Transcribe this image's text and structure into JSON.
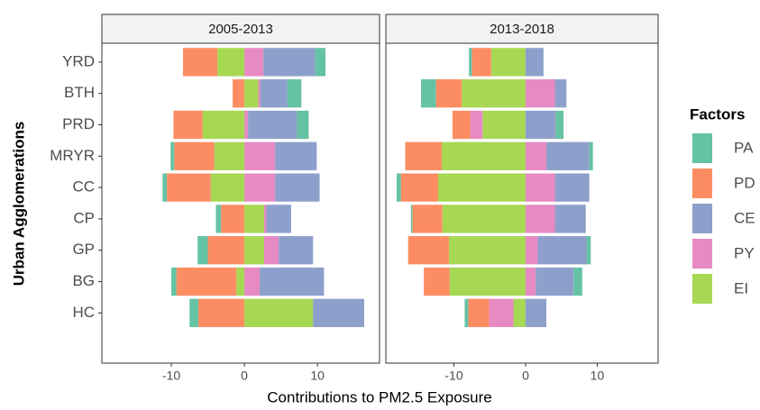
{
  "chart_data": [
    {
      "type": "bar",
      "orientation": "horizontal",
      "stacked": true,
      "title": "2005-2013",
      "x_label": "Contributions to PM2.5 Exposure",
      "y_label": "Urban Agglomerations",
      "legend_title": "Factors",
      "categories": [
        "YRD",
        "BTH",
        "PRD",
        "MRYR",
        "CC",
        "CP",
        "GP",
        "BG",
        "HC"
      ],
      "xlim": [
        -19.5,
        18.5
      ],
      "xticks": [
        -10,
        0,
        10
      ],
      "series": [
        {
          "name": "PA",
          "color": "#66c2a5",
          "values": [
            1.4,
            1.9,
            1.6,
            -0.5,
            -0.6,
            -0.7,
            -1.4,
            -0.7,
            -1.2
          ]
        },
        {
          "name": "PD",
          "color": "#fc8d62",
          "values": [
            -4.7,
            -1.6,
            -4.0,
            -5.5,
            -6.0,
            -3.2,
            -5.0,
            -8.2,
            -6.3
          ]
        },
        {
          "name": "CE",
          "color": "#8da0cb",
          "values": [
            7.1,
            3.7,
            6.7,
            5.7,
            6.1,
            3.4,
            4.7,
            8.8,
            7.0
          ]
        },
        {
          "name": "PY",
          "color": "#e78ac3",
          "values": [
            2.6,
            0.3,
            0.5,
            4.2,
            4.2,
            0.3,
            2.0,
            2.1,
            0
          ]
        },
        {
          "name": "EI",
          "color": "#a6d854",
          "values": [
            -3.7,
            1.9,
            -5.7,
            -4.1,
            -4.6,
            2.7,
            2.7,
            -1.1,
            9.4
          ]
        }
      ]
    },
    {
      "type": "bar",
      "orientation": "horizontal",
      "stacked": true,
      "title": "2013-2018",
      "xlim": [
        -19.5,
        18.5
      ],
      "xticks": [
        -10,
        0,
        10
      ],
      "series": [
        {
          "name": "PA",
          "color": "#66c2a5",
          "values": [
            -0.4,
            -2.1,
            1.1,
            0.5,
            -0.6,
            -0.2,
            0.6,
            1.2,
            -0.5
          ]
        },
        {
          "name": "PD",
          "color": "#fc8d62",
          "values": [
            -2.7,
            -3.6,
            -2.5,
            -5.1,
            -5.2,
            -4.2,
            -5.7,
            -3.6,
            -2.9
          ]
        },
        {
          "name": "CE",
          "color": "#8da0cb",
          "values": [
            2.5,
            1.6,
            4.2,
            6.0,
            4.8,
            4.3,
            6.8,
            5.3,
            2.9
          ]
        },
        {
          "name": "PY",
          "color": "#e78ac3",
          "values": [
            0,
            4.1,
            -1.7,
            2.9,
            4.1,
            4.1,
            1.7,
            1.4,
            -3.4
          ]
        },
        {
          "name": "EI",
          "color": "#a6d854",
          "values": [
            -4.8,
            -8.9,
            -6.0,
            -11.7,
            -12.2,
            -11.6,
            -10.7,
            -10.6,
            -1.7
          ]
        }
      ]
    }
  ]
}
